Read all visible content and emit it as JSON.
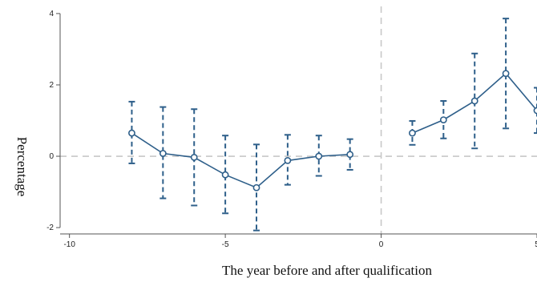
{
  "chart_data": {
    "type": "line",
    "title": "",
    "xlabel": "The year before and after qualification",
    "ylabel": "Percentage",
    "xlim": [
      -10.3,
      5
    ],
    "ylim": [
      -2.2,
      4.2
    ],
    "x_ticks": [
      -10,
      -5,
      0,
      5
    ],
    "y_ticks": [
      -2,
      0,
      2,
      4
    ],
    "grid": false,
    "reference_lines": {
      "x": 0,
      "y": 0
    },
    "colors": {
      "series": "#2e5f8a",
      "reference": "#c8c8c8"
    },
    "segments": [
      {
        "points": [
          {
            "x": -8,
            "y": 0.65,
            "lo": -0.2,
            "hi": 1.53
          },
          {
            "x": -7,
            "y": 0.08,
            "lo": -1.18,
            "hi": 1.38
          },
          {
            "x": -6,
            "y": -0.03,
            "lo": -1.38,
            "hi": 1.32
          },
          {
            "x": -5,
            "y": -0.52,
            "lo": -1.6,
            "hi": 0.58
          },
          {
            "x": -4,
            "y": -0.88,
            "lo": -2.08,
            "hi": 0.33
          },
          {
            "x": -3,
            "y": -0.12,
            "lo": -0.8,
            "hi": 0.6
          },
          {
            "x": -2,
            "y": 0.0,
            "lo": -0.55,
            "hi": 0.58
          },
          {
            "x": -1,
            "y": 0.05,
            "lo": -0.38,
            "hi": 0.48
          }
        ]
      },
      {
        "points": [
          {
            "x": 1,
            "y": 0.65,
            "lo": 0.32,
            "hi": 0.99
          },
          {
            "x": 2,
            "y": 1.02,
            "lo": 0.5,
            "hi": 1.55
          },
          {
            "x": 3,
            "y": 1.55,
            "lo": 0.22,
            "hi": 2.88
          },
          {
            "x": 4,
            "y": 2.32,
            "lo": 0.78,
            "hi": 3.86
          },
          {
            "x": 5,
            "y": 1.28,
            "lo": 0.65,
            "hi": 1.92
          }
        ]
      }
    ]
  }
}
